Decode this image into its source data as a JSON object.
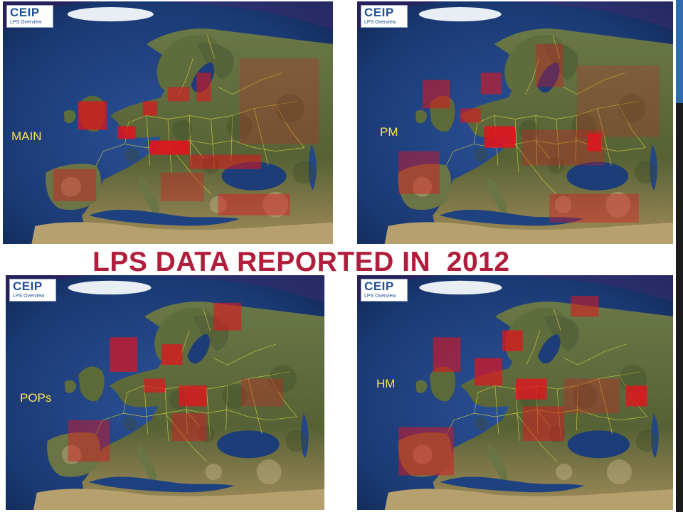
{
  "title": "LPS DATA REPORTED IN  2012",
  "logo": {
    "brand": "CEIP",
    "subtitle": "LPS Overview"
  },
  "panels": [
    {
      "id": "main",
      "label": "MAIN"
    },
    {
      "id": "pm",
      "label": "PM"
    },
    {
      "id": "pops",
      "label": "POPs"
    },
    {
      "id": "hm",
      "label": "HM"
    }
  ],
  "colors": {
    "title": "#b01e3c",
    "panel_label": "#ffe14a",
    "point_source": "#e0141e",
    "ocean": "#1e3f7a",
    "land": "#5d6b3b",
    "border": "#d8d33a",
    "logo_text": "#1f4f96"
  }
}
